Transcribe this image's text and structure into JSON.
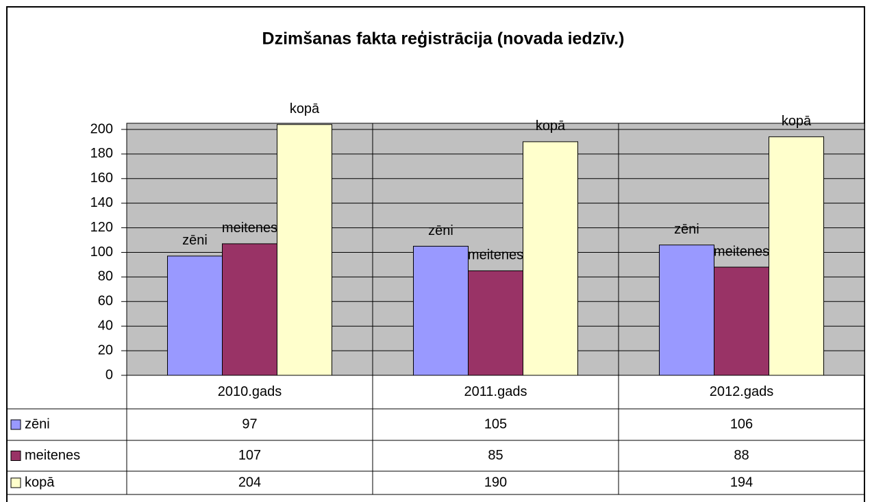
{
  "chart_data": {
    "type": "bar",
    "title": "Dzimšanas fakta reģistrācija (novada iedzīv.)",
    "categories": [
      "2010.gads",
      "2011.gads",
      "2012.gads"
    ],
    "series": [
      {
        "name": "zēni",
        "color": "#9999ff",
        "values": [
          97,
          105,
          106
        ]
      },
      {
        "name": "meitenes",
        "color": "#993366",
        "values": [
          107,
          85,
          88
        ]
      },
      {
        "name": "kopā",
        "color": "#ffffcc",
        "values": [
          204,
          190,
          194
        ]
      }
    ],
    "ylim": [
      0,
      205
    ],
    "yticks": [
      0,
      20,
      40,
      60,
      80,
      100,
      120,
      140,
      160,
      180,
      200
    ],
    "grid": true,
    "plot_background": "#c0c0c0"
  }
}
